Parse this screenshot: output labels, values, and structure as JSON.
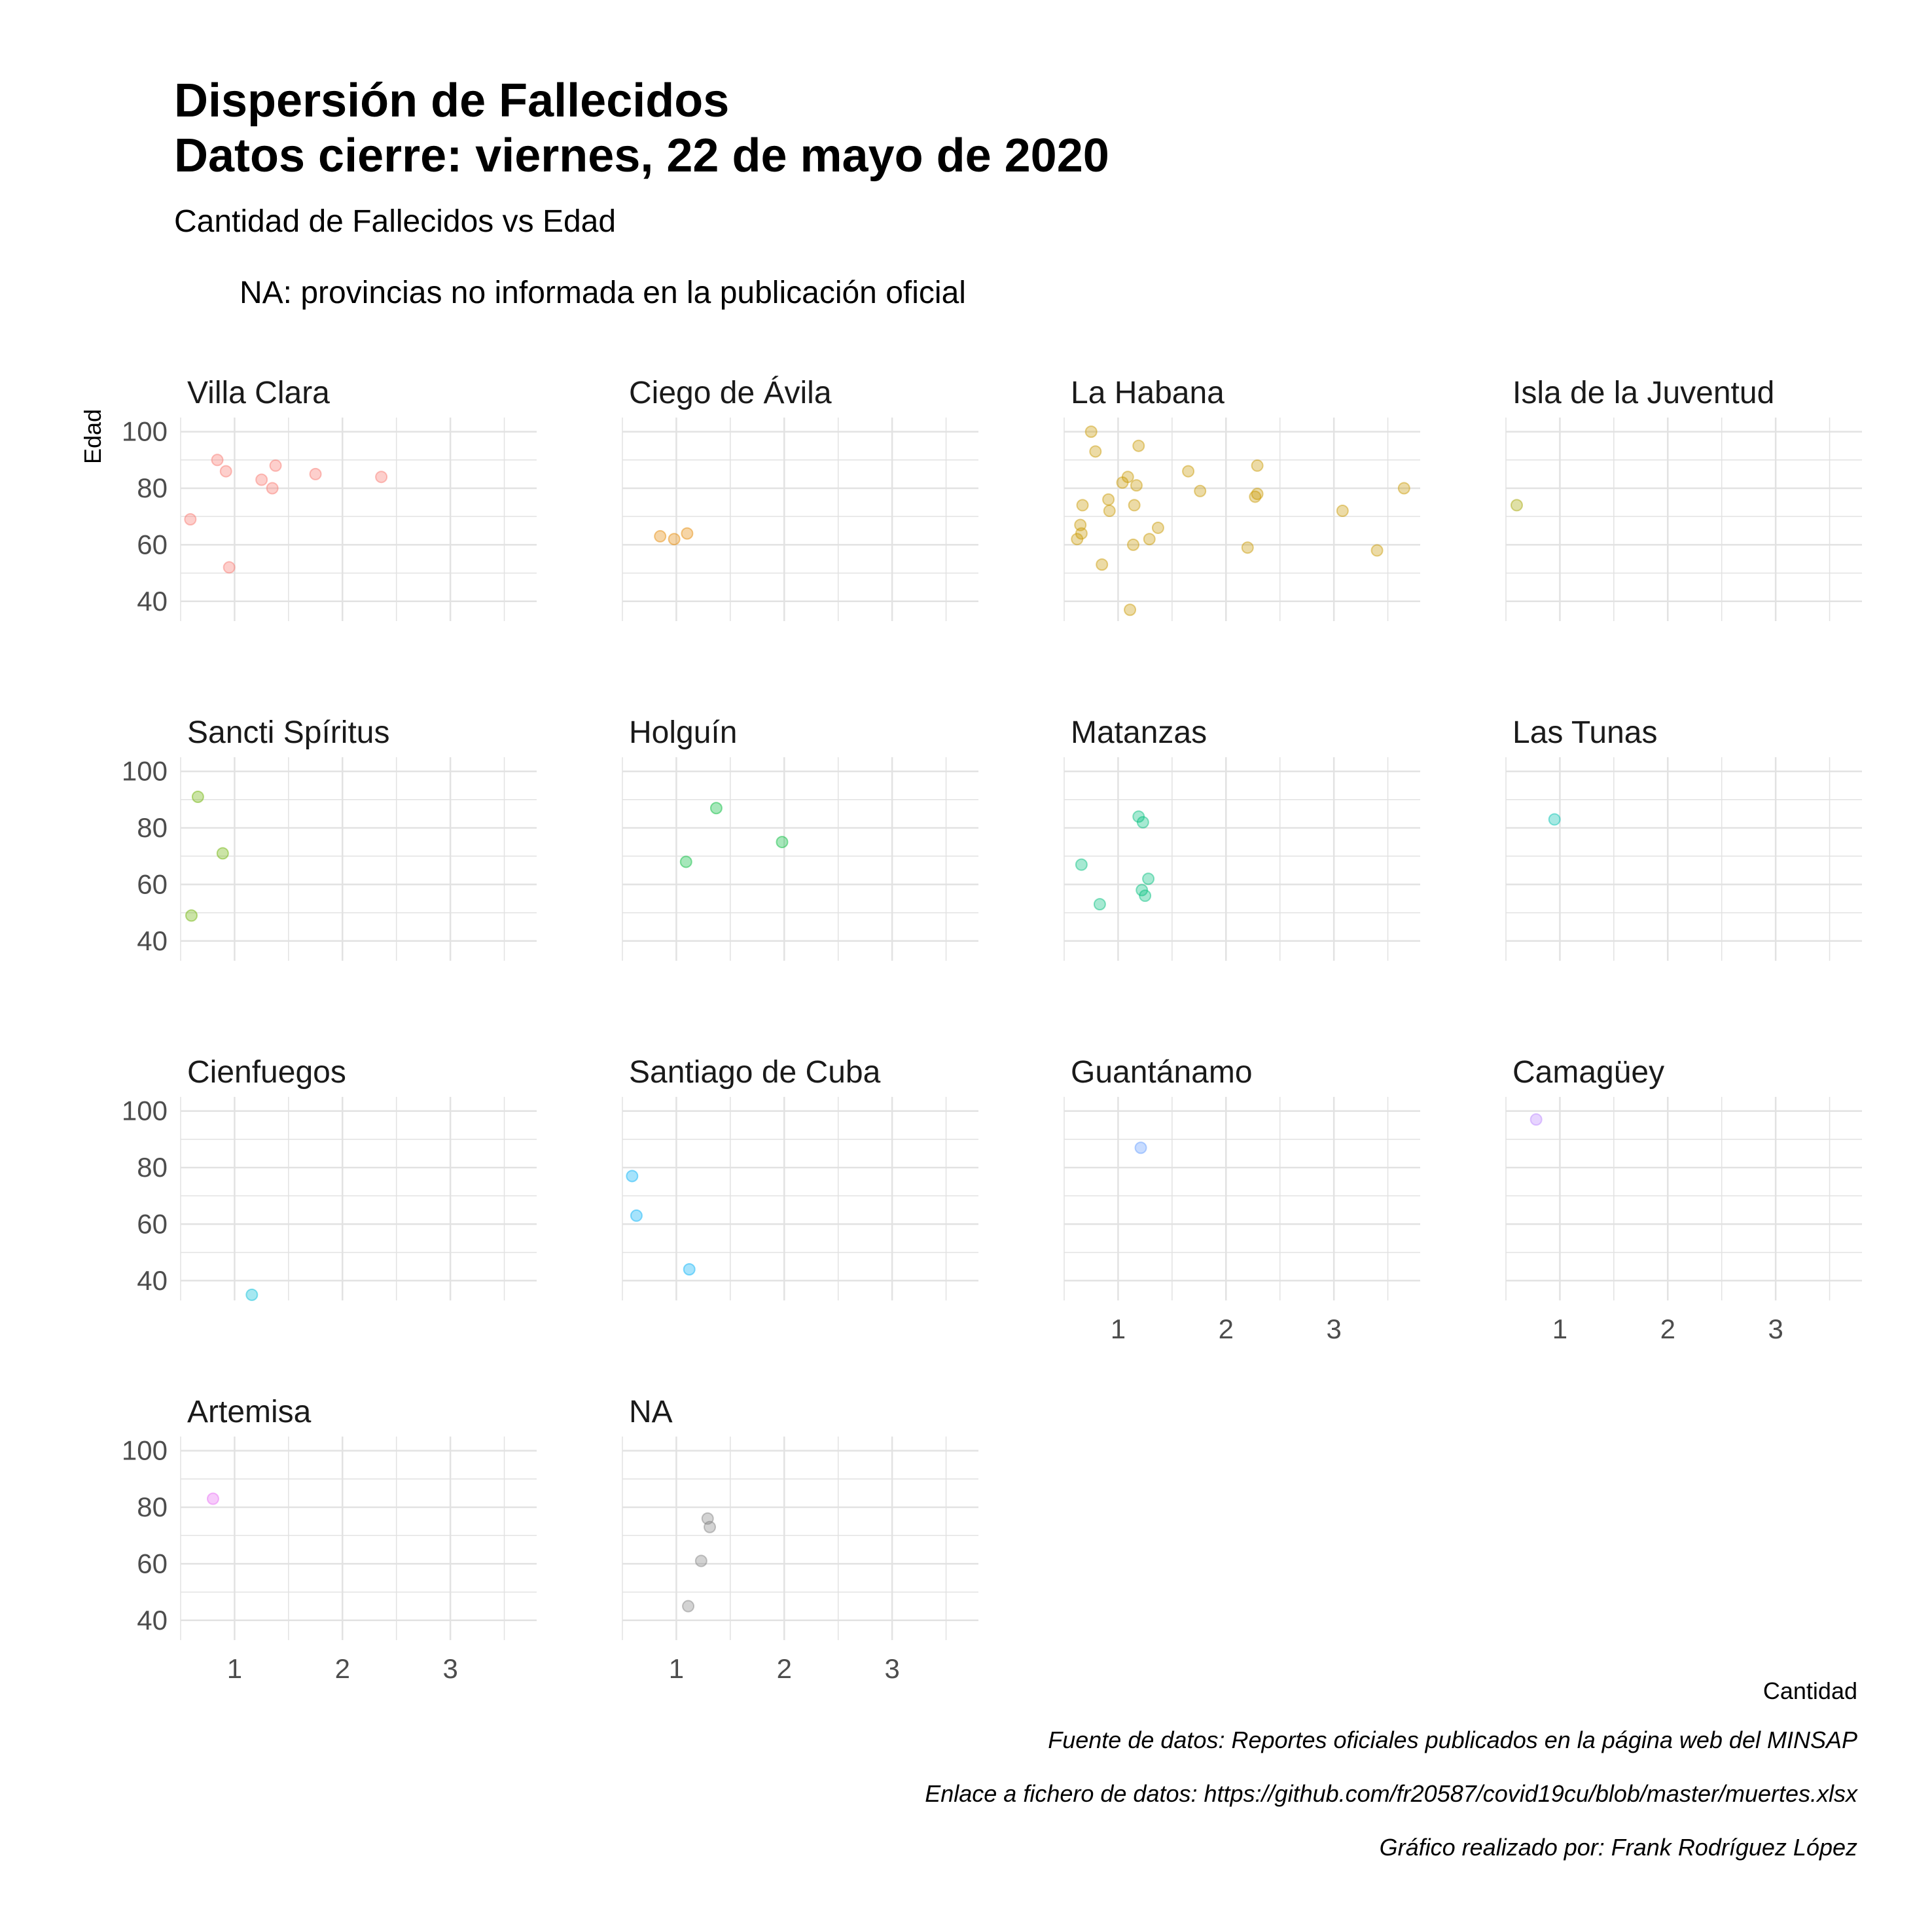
{
  "title_lines": [
    "Dispersión de Fallecidos",
    "Datos cierre: viernes, 22 de mayo de 2020"
  ],
  "subtitle": "Cantidad de Fallecidos vs Edad",
  "note": "NA: provincias no informada en la publicación oficial",
  "captions": [
    "Fuente de datos: Reportes oficiales publicados en la página web del MINSAP",
    "Enlace a fichero de datos: https://github.com/fr20587/covid19cu/blob/master/muertes.xlsx",
    "Gráfico realizado por: Frank Rodríguez López"
  ],
  "chart_data": {
    "type": "scatter",
    "facets": true,
    "xlabel": "Cantidad",
    "ylabel": "Edad",
    "x_ticks": [
      1,
      2,
      3
    ],
    "y_ticks": [
      40,
      60,
      80,
      100
    ],
    "xlim": [
      0.5,
      3.8
    ],
    "ylim": [
      33,
      105
    ],
    "grid": true,
    "point_alpha": 0.35,
    "panels": [
      {
        "name": "Villa Clara",
        "color": "#F8766D",
        "points": [
          [
            0.59,
            69
          ],
          [
            0.84,
            90
          ],
          [
            0.95,
            52
          ],
          [
            0.92,
            86
          ],
          [
            1.25,
            83
          ],
          [
            1.35,
            80
          ],
          [
            1.38,
            88
          ],
          [
            1.75,
            85
          ],
          [
            2.36,
            84
          ]
        ]
      },
      {
        "name": "Ciego de Ávila",
        "color": "#E58700",
        "points": [
          [
            0.85,
            63
          ],
          [
            0.98,
            62
          ],
          [
            1.1,
            64
          ]
        ]
      },
      {
        "name": "La Habana",
        "color": "#C99800",
        "points": [
          [
            0.62,
            62
          ],
          [
            0.65,
            67
          ],
          [
            0.66,
            64
          ],
          [
            0.67,
            74
          ],
          [
            0.75,
            100
          ],
          [
            0.79,
            93
          ],
          [
            0.85,
            53
          ],
          [
            0.91,
            76
          ],
          [
            0.92,
            72
          ],
          [
            1.04,
            82
          ],
          [
            1.09,
            84
          ],
          [
            1.11,
            37
          ],
          [
            1.14,
            60
          ],
          [
            1.15,
            74
          ],
          [
            1.17,
            81
          ],
          [
            1.19,
            95
          ],
          [
            1.29,
            62
          ],
          [
            1.37,
            66
          ],
          [
            1.65,
            86
          ],
          [
            1.76,
            79
          ],
          [
            2.2,
            59
          ],
          [
            2.27,
            77
          ],
          [
            2.29,
            78
          ],
          [
            2.29,
            88
          ],
          [
            3.08,
            72
          ],
          [
            3.4,
            58
          ],
          [
            3.65,
            80
          ]
        ]
      },
      {
        "name": "Isla de la Juventud",
        "color": "#A3A500",
        "points": [
          [
            0.6,
            74
          ]
        ]
      },
      {
        "name": "Sancti Spíritus",
        "color": "#6BB100",
        "points": [
          [
            0.6,
            49
          ],
          [
            0.66,
            91
          ],
          [
            0.89,
            71
          ]
        ]
      },
      {
        "name": "Holguín",
        "color": "#00BA38",
        "points": [
          [
            1.09,
            68
          ],
          [
            1.37,
            87
          ],
          [
            1.98,
            75
          ]
        ]
      },
      {
        "name": "Matanzas",
        "color": "#00BF7D",
        "points": [
          [
            0.66,
            67
          ],
          [
            0.83,
            53
          ],
          [
            1.19,
            84
          ],
          [
            1.22,
            58
          ],
          [
            1.23,
            82
          ],
          [
            1.25,
            56
          ],
          [
            1.28,
            62
          ]
        ]
      },
      {
        "name": "Las Tunas",
        "color": "#00C0AF",
        "points": [
          [
            0.95,
            83
          ]
        ]
      },
      {
        "name": "Cienfuegos",
        "color": "#00BCD8",
        "points": [
          [
            1.16,
            35
          ]
        ]
      },
      {
        "name": "Santiago de Cuba",
        "color": "#00B0F6",
        "points": [
          [
            0.59,
            77
          ],
          [
            0.63,
            63
          ],
          [
            1.12,
            44
          ]
        ]
      },
      {
        "name": "Guantánamo",
        "color": "#619CFF",
        "points": [
          [
            1.21,
            87
          ]
        ]
      },
      {
        "name": "Camagüey",
        "color": "#B983FF",
        "points": [
          [
            0.78,
            97
          ]
        ]
      },
      {
        "name": "Artemisa",
        "color": "#E76BF3",
        "points": [
          [
            0.8,
            83
          ]
        ]
      },
      {
        "name": "NA",
        "color": "#808080",
        "points": [
          [
            1.11,
            45
          ],
          [
            1.23,
            61
          ],
          [
            1.29,
            76
          ],
          [
            1.31,
            73
          ]
        ]
      }
    ]
  }
}
